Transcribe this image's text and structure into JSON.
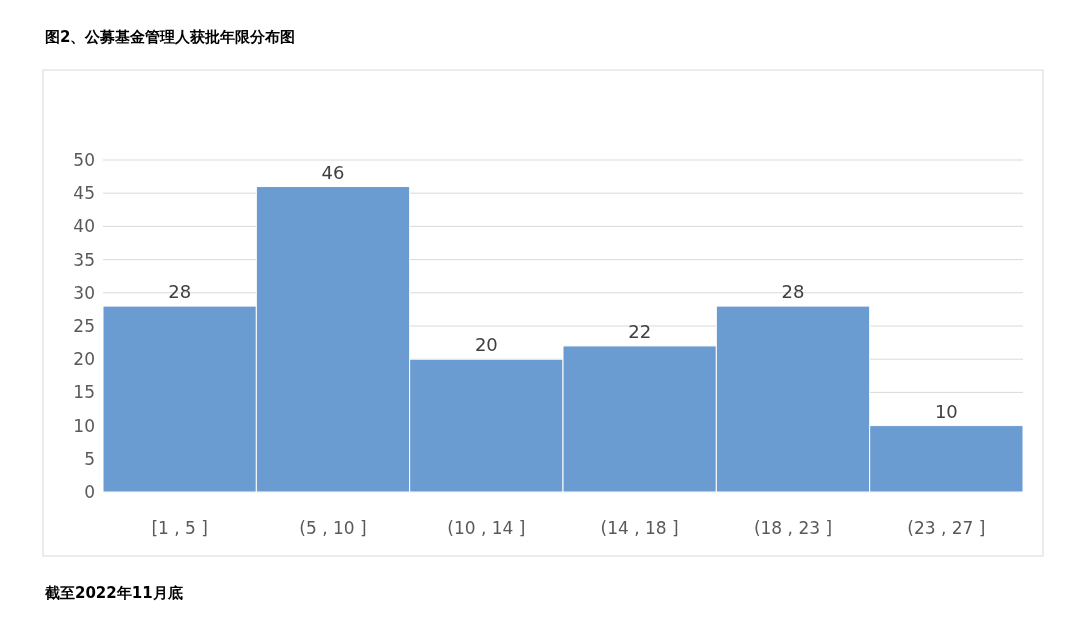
{
  "chart_data": {
    "type": "bar",
    "title": "图2、公募基金管理人获批年限分布图",
    "categories": [
      "[1 , 5 ]",
      "(5 , 10 ]",
      "(10 , 14 ]",
      "(14 , 18 ]",
      "(18 , 23 ]",
      "(23 , 27 ]"
    ],
    "values": [
      28,
      46,
      20,
      22,
      28,
      10
    ],
    "color": "#6a9bd1",
    "ylim": [
      0,
      50
    ],
    "yticks": [
      0,
      5,
      10,
      15,
      20,
      25,
      30,
      35,
      40,
      45,
      50
    ],
    "grid": "y",
    "data_labels": true,
    "annotations": [
      "截至2022年11月底"
    ]
  }
}
